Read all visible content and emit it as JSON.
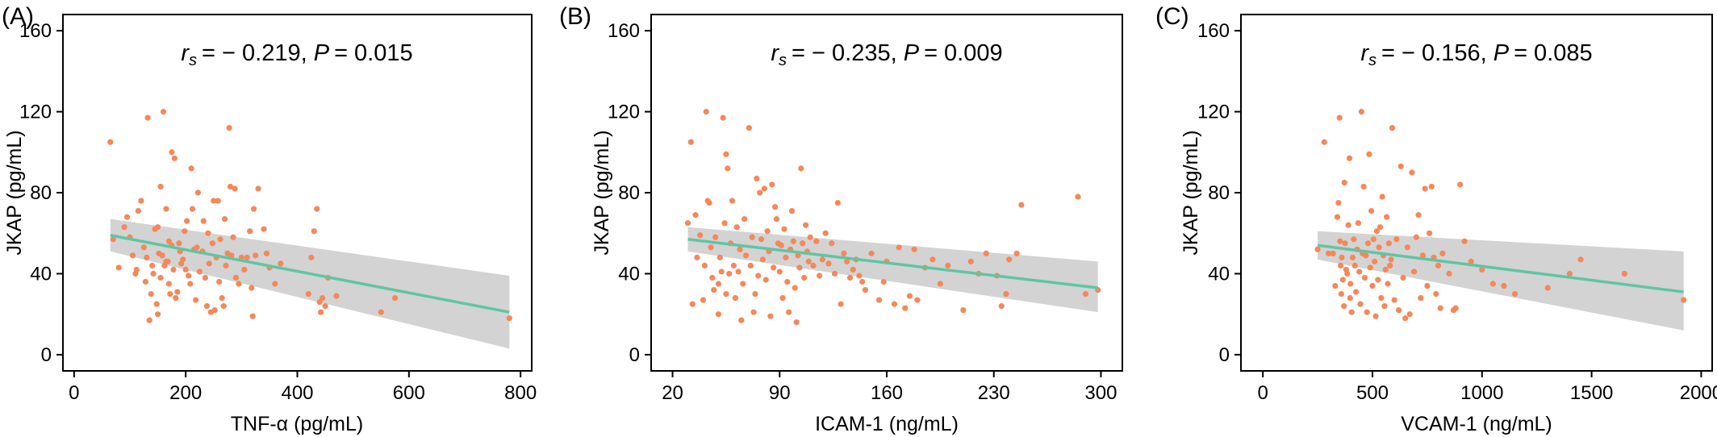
{
  "panels": [
    {
      "label": "(A)",
      "annotation": {
        "rs_symbol": "r",
        "rs_sub": "s",
        "rs_value": "= − 0.219",
        "p_symbol": "P",
        "p_value": "= 0.015"
      },
      "xlabel": "TNF-α (pg/mL)",
      "ylabel": "JKAP (pg/mL)",
      "x_ticks": [
        0,
        200,
        400,
        600,
        800
      ],
      "y_ticks": [
        0,
        40,
        80,
        120,
        160
      ]
    },
    {
      "label": "(B)",
      "annotation": {
        "rs_symbol": "r",
        "rs_sub": "s",
        "rs_value": "= − 0.235",
        "p_symbol": "P",
        "p_value": "= 0.009"
      },
      "xlabel": "ICAM-1 (ng/mL)",
      "ylabel": "JKAP (pg/mL)",
      "x_ticks": [
        20,
        90,
        160,
        230,
        300
      ],
      "y_ticks": [
        0,
        40,
        80,
        120,
        160
      ]
    },
    {
      "label": "(C)",
      "annotation": {
        "rs_symbol": "r",
        "rs_sub": "s",
        "rs_value": "= − 0.156",
        "p_symbol": "P",
        "p_value": "= 0.085"
      },
      "xlabel": "VCAM-1 (ng/mL)",
      "ylabel": "JKAP (pg/mL)",
      "x_ticks": [
        0,
        500,
        1000,
        1500,
        2000
      ],
      "y_ticks": [
        0,
        40,
        80,
        120,
        160
      ]
    }
  ],
  "chart_data": [
    {
      "type": "scatter",
      "xlabel": "TNF-α (pg/mL)",
      "ylabel": "JKAP (pg/mL)",
      "xlim": [
        -20,
        820
      ],
      "ylim": [
        -8,
        168
      ],
      "point_color": "#F4885A",
      "line_color": "#5FC5A3",
      "band_color": "#D3D3D3",
      "fit_line": {
        "x": [
          65,
          780
        ],
        "y": [
          59,
          21
        ]
      },
      "ci_band": {
        "x": [
          65,
          780
        ],
        "upper": [
          67,
          39
        ],
        "lower": [
          51,
          3
        ]
      },
      "points": [
        [
          65,
          105
        ],
        [
          70,
          57
        ],
        [
          80,
          43
        ],
        [
          90,
          63
        ],
        [
          95,
          68
        ],
        [
          100,
          58
        ],
        [
          105,
          49
        ],
        [
          110,
          40
        ],
        [
          112,
          42
        ],
        [
          115,
          71
        ],
        [
          120,
          76
        ],
        [
          125,
          53
        ],
        [
          128,
          36
        ],
        [
          130,
          48
        ],
        [
          132,
          117
        ],
        [
          135,
          17
        ],
        [
          138,
          30
        ],
        [
          140,
          44
        ],
        [
          142,
          40
        ],
        [
          145,
          62
        ],
        [
          148,
          25
        ],
        [
          150,
          20
        ],
        [
          150,
          63
        ],
        [
          152,
          50
        ],
        [
          155,
          38
        ],
        [
          155,
          83
        ],
        [
          158,
          49
        ],
        [
          160,
          120
        ],
        [
          162,
          44
        ],
        [
          165,
          46
        ],
        [
          165,
          72
        ],
        [
          168,
          46
        ],
        [
          170,
          56
        ],
        [
          170,
          35
        ],
        [
          172,
          30
        ],
        [
          175,
          54
        ],
        [
          175,
          100
        ],
        [
          178,
          42
        ],
        [
          180,
          97
        ],
        [
          182,
          28
        ],
        [
          185,
          31
        ],
        [
          188,
          55
        ],
        [
          190,
          51
        ],
        [
          192,
          45
        ],
        [
          195,
          47
        ],
        [
          198,
          61
        ],
        [
          200,
          42
        ],
        [
          202,
          66
        ],
        [
          205,
          39
        ],
        [
          208,
          35
        ],
        [
          210,
          92
        ],
        [
          212,
          72
        ],
        [
          215,
          52
        ],
        [
          218,
          27
        ],
        [
          220,
          53
        ],
        [
          222,
          80
        ],
        [
          225,
          41
        ],
        [
          230,
          51
        ],
        [
          232,
          66
        ],
        [
          235,
          38
        ],
        [
          238,
          24
        ],
        [
          240,
          60
        ],
        [
          242,
          45
        ],
        [
          245,
          21
        ],
        [
          248,
          55
        ],
        [
          250,
          76
        ],
        [
          252,
          22
        ],
        [
          255,
          48
        ],
        [
          258,
          76
        ],
        [
          260,
          36
        ],
        [
          262,
          57
        ],
        [
          265,
          28
        ],
        [
          268,
          24
        ],
        [
          270,
          67
        ],
        [
          272,
          44
        ],
        [
          275,
          50
        ],
        [
          278,
          112
        ],
        [
          280,
          83
        ],
        [
          282,
          49
        ],
        [
          285,
          58
        ],
        [
          288,
          82
        ],
        [
          290,
          38
        ],
        [
          295,
          35
        ],
        [
          300,
          48
        ],
        [
          305,
          42
        ],
        [
          310,
          48
        ],
        [
          315,
          61
        ],
        [
          318,
          33
        ],
        [
          320,
          19
        ],
        [
          322,
          72
        ],
        [
          325,
          49
        ],
        [
          330,
          82
        ],
        [
          340,
          62
        ],
        [
          345,
          50
        ],
        [
          350,
          43
        ],
        [
          360,
          35
        ],
        [
          370,
          45
        ],
        [
          420,
          30
        ],
        [
          425,
          48
        ],
        [
          430,
          61
        ],
        [
          435,
          72
        ],
        [
          440,
          26
        ],
        [
          442,
          21
        ],
        [
          445,
          28
        ],
        [
          450,
          24
        ],
        [
          455,
          38
        ],
        [
          470,
          29
        ],
        [
          550,
          21
        ],
        [
          575,
          28
        ],
        [
          780,
          18
        ]
      ]
    },
    {
      "type": "scatter",
      "xlabel": "ICAM-1 (ng/mL)",
      "ylabel": "JKAP (pg/mL)",
      "xlim": [
        6,
        314
      ],
      "ylim": [
        -8,
        168
      ],
      "point_color": "#F4885A",
      "line_color": "#5FC5A3",
      "band_color": "#D3D3D3",
      "fit_line": {
        "x": [
          30,
          298
        ],
        "y": [
          57,
          33
        ]
      },
      "ci_band": {
        "x": [
          30,
          298
        ],
        "upper": [
          63,
          46
        ],
        "lower": [
          51,
          21
        ]
      },
      "points": [
        [
          30,
          65
        ],
        [
          32,
          105
        ],
        [
          33,
          25
        ],
        [
          35,
          69
        ],
        [
          36,
          48
        ],
        [
          38,
          59
        ],
        [
          40,
          27
        ],
        [
          41,
          44
        ],
        [
          42,
          120
        ],
        [
          43,
          76
        ],
        [
          44,
          75
        ],
        [
          45,
          53
        ],
        [
          46,
          38
        ],
        [
          47,
          32
        ],
        [
          48,
          58
        ],
        [
          50,
          20
        ],
        [
          50,
          35
        ],
        [
          51,
          48
        ],
        [
          52,
          41
        ],
        [
          53,
          117
        ],
        [
          54,
          65
        ],
        [
          55,
          30
        ],
        [
          55,
          99
        ],
        [
          56,
          92
        ],
        [
          57,
          40
        ],
        [
          58,
          55
        ],
        [
          59,
          76
        ],
        [
          60,
          44
        ],
        [
          61,
          28
        ],
        [
          62,
          63
        ],
        [
          63,
          41
        ],
        [
          64,
          52
        ],
        [
          65,
          17
        ],
        [
          66,
          35
        ],
        [
          67,
          67
        ],
        [
          68,
          49
        ],
        [
          70,
          112
        ],
        [
          71,
          44
        ],
        [
          72,
          58
        ],
        [
          73,
          21
        ],
        [
          74,
          30
        ],
        [
          75,
          87
        ],
        [
          76,
          39
        ],
        [
          77,
          80
        ],
        [
          78,
          57
        ],
        [
          79,
          47
        ],
        [
          80,
          82
        ],
        [
          81,
          37
        ],
        [
          82,
          61
        ],
        [
          83,
          51
        ],
        [
          84,
          19
        ],
        [
          85,
          84
        ],
        [
          86,
          43
        ],
        [
          87,
          73
        ],
        [
          88,
          67
        ],
        [
          89,
          55
        ],
        [
          90,
          41
        ],
        [
          91,
          54
        ],
        [
          92,
          28
        ],
        [
          93,
          62
        ],
        [
          94,
          48
        ],
        [
          95,
          36
        ],
        [
          96,
          21
        ],
        [
          97,
          52
        ],
        [
          98,
          71
        ],
        [
          99,
          56
        ],
        [
          100,
          33
        ],
        [
          101,
          16
        ],
        [
          102,
          49
        ],
        [
          103,
          43
        ],
        [
          104,
          92
        ],
        [
          105,
          55
        ],
        [
          106,
          38
        ],
        [
          107,
          64
        ],
        [
          108,
          51
        ],
        [
          109,
          46
        ],
        [
          110,
          58
        ],
        [
          112,
          44
        ],
        [
          114,
          56
        ],
        [
          116,
          39
        ],
        [
          118,
          47
        ],
        [
          120,
          60
        ],
        [
          122,
          45
        ],
        [
          124,
          55
        ],
        [
          126,
          40
        ],
        [
          128,
          75
        ],
        [
          130,
          25
        ],
        [
          132,
          50
        ],
        [
          134,
          46
        ],
        [
          136,
          38
        ],
        [
          138,
          42
        ],
        [
          140,
          47
        ],
        [
          142,
          39
        ],
        [
          144,
          36
        ],
        [
          146,
          32
        ],
        [
          150,
          50
        ],
        [
          155,
          27
        ],
        [
          158,
          36
        ],
        [
          160,
          46
        ],
        [
          165,
          25
        ],
        [
          168,
          53
        ],
        [
          172,
          23
        ],
        [
          175,
          29
        ],
        [
          178,
          52
        ],
        [
          180,
          27
        ],
        [
          185,
          43
        ],
        [
          190,
          47
        ],
        [
          195,
          35
        ],
        [
          200,
          44
        ],
        [
          210,
          22
        ],
        [
          215,
          46
        ],
        [
          220,
          40
        ],
        [
          225,
          50
        ],
        [
          232,
          39
        ],
        [
          235,
          24
        ],
        [
          238,
          30
        ],
        [
          240,
          47
        ],
        [
          245,
          50
        ],
        [
          248,
          74
        ],
        [
          285,
          78
        ],
        [
          290,
          30
        ],
        [
          298,
          32
        ]
      ]
    },
    {
      "type": "scatter",
      "xlabel": "VCAM-1 (ng/mL)",
      "ylabel": "JKAP (pg/mL)",
      "xlim": [
        -100,
        2050
      ],
      "ylim": [
        -8,
        168
      ],
      "point_color": "#F4885A",
      "line_color": "#5FC5A3",
      "band_color": "#D3D3D3",
      "fit_line": {
        "x": [
          250,
          1920
        ],
        "y": [
          54,
          31
        ]
      },
      "ci_band": {
        "x": [
          250,
          1920
        ],
        "upper": [
          61,
          51
        ],
        "lower": [
          47,
          12
        ]
      },
      "points": [
        [
          250,
          52
        ],
        [
          280,
          105
        ],
        [
          300,
          50
        ],
        [
          320,
          50
        ],
        [
          330,
          34
        ],
        [
          340,
          68
        ],
        [
          345,
          75
        ],
        [
          350,
          117
        ],
        [
          352,
          56
        ],
        [
          355,
          44
        ],
        [
          358,
          30
        ],
        [
          360,
          48
        ],
        [
          365,
          37
        ],
        [
          370,
          24
        ],
        [
          372,
          85
        ],
        [
          375,
          55
        ],
        [
          380,
          42
        ],
        [
          385,
          40
        ],
        [
          390,
          64
        ],
        [
          395,
          97
        ],
        [
          398,
          28
        ],
        [
          400,
          35
        ],
        [
          405,
          21
        ],
        [
          410,
          48
        ],
        [
          415,
          57
        ],
        [
          420,
          44
        ],
        [
          425,
          31
        ],
        [
          430,
          52
        ],
        [
          435,
          65
        ],
        [
          440,
          41
        ],
        [
          445,
          25
        ],
        [
          450,
          120
        ],
        [
          455,
          50
        ],
        [
          460,
          83
        ],
        [
          465,
          38
        ],
        [
          470,
          49
        ],
        [
          475,
          21
        ],
        [
          480,
          55
        ],
        [
          485,
          99
        ],
        [
          490,
          43
        ],
        [
          495,
          71
        ],
        [
          500,
          34
        ],
        [
          505,
          57
        ],
        [
          510,
          46
        ],
        [
          515,
          19
        ],
        [
          520,
          61
        ],
        [
          525,
          37
        ],
        [
          530,
          53
        ],
        [
          535,
          63
        ],
        [
          540,
          28
        ],
        [
          545,
          78
        ],
        [
          550,
          49
        ],
        [
          555,
          24
        ],
        [
          560,
          42
        ],
        [
          565,
          68
        ],
        [
          570,
          35
        ],
        [
          575,
          55
        ],
        [
          580,
          44
        ],
        [
          585,
          47
        ],
        [
          590,
          112
        ],
        [
          600,
          27
        ],
        [
          610,
          57
        ],
        [
          620,
          22
        ],
        [
          630,
          93
        ],
        [
          640,
          38
        ],
        [
          650,
          18
        ],
        [
          660,
          53
        ],
        [
          670,
          20
        ],
        [
          680,
          90
        ],
        [
          690,
          41
        ],
        [
          700,
          58
        ],
        [
          710,
          69
        ],
        [
          720,
          28
        ],
        [
          730,
          49
        ],
        [
          740,
          82
        ],
        [
          750,
          34
        ],
        [
          760,
          60
        ],
        [
          770,
          83
        ],
        [
          780,
          48
        ],
        [
          790,
          30
        ],
        [
          800,
          44
        ],
        [
          810,
          23
        ],
        [
          820,
          50
        ],
        [
          850,
          40
        ],
        [
          870,
          22
        ],
        [
          880,
          23
        ],
        [
          900,
          84
        ],
        [
          920,
          56
        ],
        [
          950,
          46
        ],
        [
          1000,
          42
        ],
        [
          1050,
          35
        ],
        [
          1100,
          34
        ],
        [
          1150,
          30
        ],
        [
          1300,
          33
        ],
        [
          1400,
          40
        ],
        [
          1450,
          47
        ],
        [
          1650,
          40
        ],
        [
          1920,
          27
        ]
      ]
    }
  ]
}
